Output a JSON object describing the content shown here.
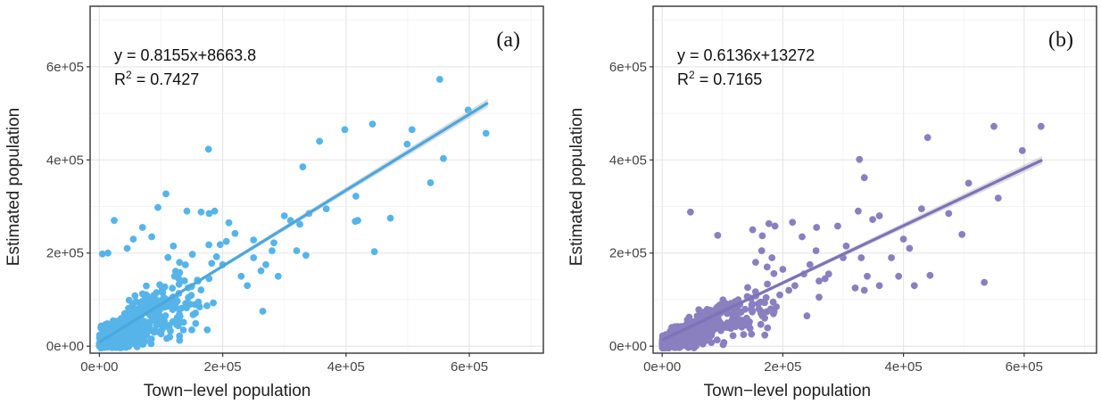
{
  "chart_data": [
    {
      "type": "scatter",
      "panel_label": "(a)",
      "xlabel": "Town−level population",
      "ylabel": "Estimated population",
      "xlim": [
        -15000,
        720000
      ],
      "ylim": [
        -15000,
        730000
      ],
      "x_ticks": [
        0,
        200000,
        400000,
        600000
      ],
      "x_tick_labels": [
        "0e+00",
        "2e+05",
        "4e+05",
        "6e+05"
      ],
      "y_ticks": [
        0,
        200000,
        400000,
        600000
      ],
      "y_tick_labels": [
        "0e+00",
        "2e+05",
        "4e+05",
        "6e+05"
      ],
      "grid": true,
      "equation": "y = 0.8155x+8663.8",
      "r2_label": "R",
      "r2_sup": "2",
      "r2_value": " = 0.7427",
      "fit": {
        "slope": 0.8155,
        "intercept": 8663.8,
        "x_range": [
          0,
          630000
        ]
      },
      "point_color": "#56b4e9",
      "line_color": "#4aa8de",
      "points": [
        [
          552000,
          573000
        ],
        [
          598000,
          507000
        ],
        [
          627000,
          457000
        ],
        [
          507000,
          465000
        ],
        [
          443000,
          477000
        ],
        [
          398000,
          465000
        ],
        [
          357000,
          440000
        ],
        [
          499000,
          434000
        ],
        [
          558000,
          403000
        ],
        [
          537000,
          351000
        ],
        [
          330000,
          385000
        ],
        [
          177000,
          423000
        ],
        [
          108000,
          327000
        ],
        [
          416000,
          322000
        ],
        [
          419000,
          270000
        ],
        [
          472000,
          275000
        ],
        [
          446000,
          203000
        ],
        [
          415000,
          268000
        ],
        [
          265000,
          75000
        ],
        [
          368000,
          295000
        ],
        [
          340000,
          285000
        ],
        [
          300000,
          280000
        ],
        [
          283000,
          222000
        ],
        [
          250000,
          228000
        ],
        [
          210000,
          265000
        ],
        [
          220000,
          242000
        ],
        [
          187000,
          290000
        ],
        [
          178000,
          285000
        ],
        [
          165000,
          288000
        ],
        [
          142000,
          290000
        ],
        [
          95000,
          298000
        ],
        [
          24000,
          270000
        ],
        [
          14000,
          200000
        ],
        [
          5000,
          198000
        ],
        [
          190000,
          192000
        ],
        [
          200000,
          175000
        ],
        [
          230000,
          150000
        ],
        [
          240000,
          130000
        ],
        [
          262000,
          162000
        ],
        [
          280000,
          205000
        ],
        [
          320000,
          205000
        ],
        [
          335000,
          195000
        ],
        [
          290000,
          150000
        ],
        [
          270000,
          175000
        ],
        [
          160000,
          140000
        ],
        [
          175000,
          35000
        ],
        [
          150000,
          35000
        ],
        [
          130000,
          22000
        ],
        [
          70000,
          255000
        ],
        [
          55000,
          230000
        ],
        [
          45000,
          210000
        ],
        [
          85000,
          235000
        ],
        [
          120000,
          215000
        ],
        [
          130000,
          180000
        ],
        [
          250000,
          190000
        ],
        [
          310000,
          270000
        ],
        [
          325000,
          262000
        ],
        [
          206000,
          225000
        ],
        [
          196000,
          218000
        ]
      ],
      "cluster": {
        "n": 700,
        "x_scale": 50000,
        "x_max": 190000,
        "slope": 0.78,
        "noise": 36000,
        "seed": 7
      }
    },
    {
      "type": "scatter",
      "panel_label": "(b)",
      "xlabel": "Town−level population",
      "ylabel": "Estimated population",
      "xlim": [
        -15000,
        720000
      ],
      "ylim": [
        -15000,
        730000
      ],
      "x_ticks": [
        0,
        200000,
        400000,
        600000
      ],
      "x_tick_labels": [
        "0e+00",
        "2e+05",
        "4e+05",
        "6e+05"
      ],
      "y_ticks": [
        0,
        200000,
        400000,
        600000
      ],
      "y_tick_labels": [
        "0e+00",
        "2e+05",
        "4e+05",
        "6e+05"
      ],
      "grid": true,
      "equation": "y = 0.6136x+13272",
      "r2_label": "R",
      "r2_sup": "2",
      "r2_value": " = 0.7165",
      "fit": {
        "slope": 0.6136,
        "intercept": 13272,
        "x_range": [
          0,
          630000
        ]
      },
      "point_color": "#8a7fbf",
      "line_color": "#7e72b8",
      "points": [
        [
          550000,
          472000
        ],
        [
          628000,
          472000
        ],
        [
          597000,
          420000
        ],
        [
          440000,
          448000
        ],
        [
          335000,
          362000
        ],
        [
          327000,
          401000
        ],
        [
          557000,
          318000
        ],
        [
          508000,
          350000
        ],
        [
          430000,
          295000
        ],
        [
          475000,
          285000
        ],
        [
          360000,
          280000
        ],
        [
          349000,
          272000
        ],
        [
          325000,
          290000
        ],
        [
          291000,
          258000
        ],
        [
          256000,
          255000
        ],
        [
          232000,
          235000
        ],
        [
          216000,
          266000
        ],
        [
          187000,
          258000
        ],
        [
          177000,
          263000
        ],
        [
          166000,
          237000
        ],
        [
          150000,
          250000
        ],
        [
          92000,
          238000
        ],
        [
          47000,
          288000
        ],
        [
          410000,
          210000
        ],
        [
          400000,
          230000
        ],
        [
          497000,
          240000
        ],
        [
          444000,
          152000
        ],
        [
          418000,
          130000
        ],
        [
          534000,
          137000
        ],
        [
          392000,
          150000
        ],
        [
          380000,
          190000
        ],
        [
          360000,
          130000
        ],
        [
          340000,
          150000
        ],
        [
          330000,
          190000
        ],
        [
          300000,
          190000
        ],
        [
          276000,
          155000
        ],
        [
          270000,
          145000
        ],
        [
          260000,
          140000
        ],
        [
          245000,
          175000
        ],
        [
          235000,
          155000
        ],
        [
          220000,
          130000
        ],
        [
          210000,
          120000
        ],
        [
          200000,
          165000
        ],
        [
          260000,
          105000
        ],
        [
          180000,
          80000
        ],
        [
          170000,
          60000
        ],
        [
          163000,
          95000
        ],
        [
          150000,
          90000
        ],
        [
          140000,
          60000
        ],
        [
          135000,
          25000
        ],
        [
          122000,
          70000
        ],
        [
          110000,
          40000
        ],
        [
          95000,
          45000
        ],
        [
          80000,
          35000
        ],
        [
          240000,
          65000
        ],
        [
          195000,
          110000
        ],
        [
          182000,
          190000
        ],
        [
          174000,
          170000
        ],
        [
          165000,
          205000
        ],
        [
          255000,
          205000
        ],
        [
          305000,
          215000
        ],
        [
          320000,
          125000
        ],
        [
          335000,
          120000
        ]
      ],
      "cluster": {
        "n": 700,
        "x_scale": 50000,
        "x_max": 190000,
        "slope": 0.55,
        "noise": 26000,
        "seed": 13
      }
    }
  ]
}
